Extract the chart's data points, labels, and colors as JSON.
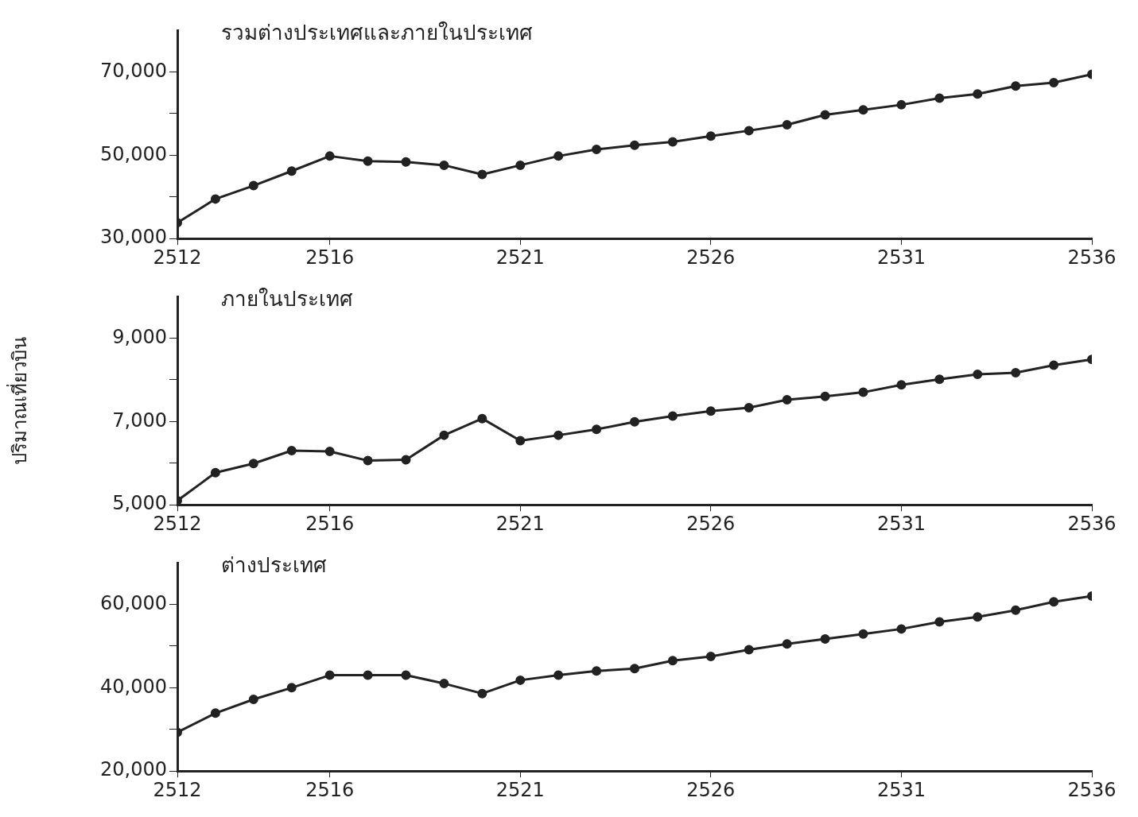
{
  "chart_data": [
    {
      "type": "line",
      "title": "รวมต่างประเทศและภายในประเทศ",
      "x": [
        2512,
        2513,
        2514,
        2515,
        2516,
        2517,
        2518,
        2519,
        2520,
        2521,
        2522,
        2523,
        2524,
        2525,
        2526,
        2527,
        2528,
        2529,
        2530,
        2531,
        2532,
        2533,
        2534,
        2535,
        2536
      ],
      "values": [
        33800,
        39500,
        42700,
        46200,
        49800,
        48600,
        48400,
        47600,
        45400,
        47600,
        49800,
        51400,
        52400,
        53200,
        54600,
        55900,
        57300,
        59700,
        60900,
        62100,
        63700,
        64700,
        66600,
        67400,
        69400
      ],
      "color": "#222222",
      "marker": "circle",
      "line_style": "solid",
      "grid": false,
      "legend": false,
      "xlim": [
        2512,
        2536
      ],
      "xticks": [
        2512,
        2516,
        2521,
        2526,
        2531,
        2536
      ],
      "ylim": [
        30000,
        80000
      ],
      "yticks": [
        {
          "value": 30000,
          "label": "30,000"
        },
        {
          "value": 40000,
          "label": null
        },
        {
          "value": 50000,
          "label": "50,000"
        },
        {
          "value": 60000,
          "label": null
        },
        {
          "value": 70000,
          "label": "70,000"
        }
      ]
    },
    {
      "type": "line",
      "title": "ภายในประเทศ",
      "ylabel": "ปริมาณเที่ยวบิน",
      "x": [
        2512,
        2513,
        2514,
        2515,
        2516,
        2517,
        2518,
        2519,
        2520,
        2521,
        2522,
        2523,
        2524,
        2525,
        2526,
        2527,
        2528,
        2529,
        2530,
        2531,
        2532,
        2533,
        2534,
        2535,
        2536
      ],
      "values": [
        5100,
        5770,
        5990,
        6300,
        6280,
        6060,
        6080,
        6670,
        7070,
        6540,
        6670,
        6810,
        6990,
        7130,
        7250,
        7330,
        7520,
        7600,
        7700,
        7880,
        8010,
        8130,
        8170,
        8350,
        8490
      ],
      "color": "#222222",
      "marker": "circle",
      "line_style": "solid",
      "grid": false,
      "legend": false,
      "xlim": [
        2512,
        2536
      ],
      "xticks": [
        2512,
        2516,
        2521,
        2526,
        2531,
        2536
      ],
      "ylim": [
        5000,
        10000
      ],
      "yticks": [
        {
          "value": 5000,
          "label": "5,000"
        },
        {
          "value": 6000,
          "label": null
        },
        {
          "value": 7000,
          "label": "7,000"
        },
        {
          "value": 8000,
          "label": null
        },
        {
          "value": 9000,
          "label": "9,000"
        }
      ]
    },
    {
      "type": "line",
      "title": "ต่างประเทศ",
      "x": [
        2512,
        2513,
        2514,
        2515,
        2516,
        2517,
        2518,
        2519,
        2520,
        2521,
        2522,
        2523,
        2524,
        2525,
        2526,
        2527,
        2528,
        2529,
        2530,
        2531,
        2532,
        2533,
        2534,
        2535,
        2536
      ],
      "values": [
        29300,
        33900,
        37200,
        40000,
        43000,
        43000,
        43000,
        41000,
        38600,
        41800,
        43000,
        44000,
        44600,
        46500,
        47500,
        49100,
        50500,
        51700,
        52900,
        54100,
        55800,
        57000,
        58600,
        60600,
        62000
      ],
      "color": "#222222",
      "marker": "circle",
      "line_style": "solid",
      "grid": false,
      "legend": false,
      "xlim": [
        2512,
        2536
      ],
      "xticks": [
        2512,
        2516,
        2521,
        2526,
        2531,
        2536
      ],
      "ylim": [
        20000,
        70000
      ],
      "yticks": [
        {
          "value": 20000,
          "label": "20,000"
        },
        {
          "value": 30000,
          "label": null
        },
        {
          "value": 40000,
          "label": "40,000"
        },
        {
          "value": 50000,
          "label": null
        },
        {
          "value": 60000,
          "label": "60,000"
        }
      ]
    }
  ]
}
